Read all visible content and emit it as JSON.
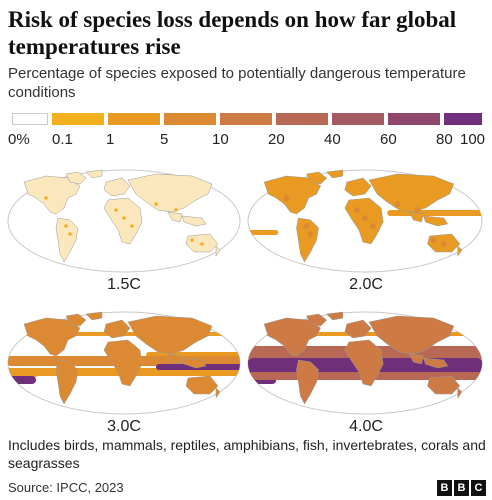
{
  "title": "Risk of species loss depends on how far global temperatures rise",
  "subtitle": "Percentage of species exposed to potentially dangerous temperature conditions",
  "legend": {
    "ticks": [
      "0%",
      "0.1",
      "1",
      "5",
      "10",
      "20",
      "40",
      "60",
      "80",
      "100"
    ],
    "colors": [
      "#ffffff",
      "#f2b01e",
      "#e89a22",
      "#db8a33",
      "#cd7a45",
      "#b86955",
      "#a45a62",
      "#8f476e",
      "#6f2f7a",
      "#4b1f8a"
    ]
  },
  "maps": [
    {
      "label": "1.5C",
      "level": 1
    },
    {
      "label": "2.0C",
      "level": 2
    },
    {
      "label": "3.0C",
      "level": 3
    },
    {
      "label": "4.0C",
      "level": 4
    }
  ],
  "note": "Includes birds, mammals, reptiles, amphibians, fish, invertebrates, corals and seagrasses",
  "source": "Source: IPCC, 2023",
  "logo": {
    "letters": [
      "B",
      "B",
      "C"
    ]
  }
}
